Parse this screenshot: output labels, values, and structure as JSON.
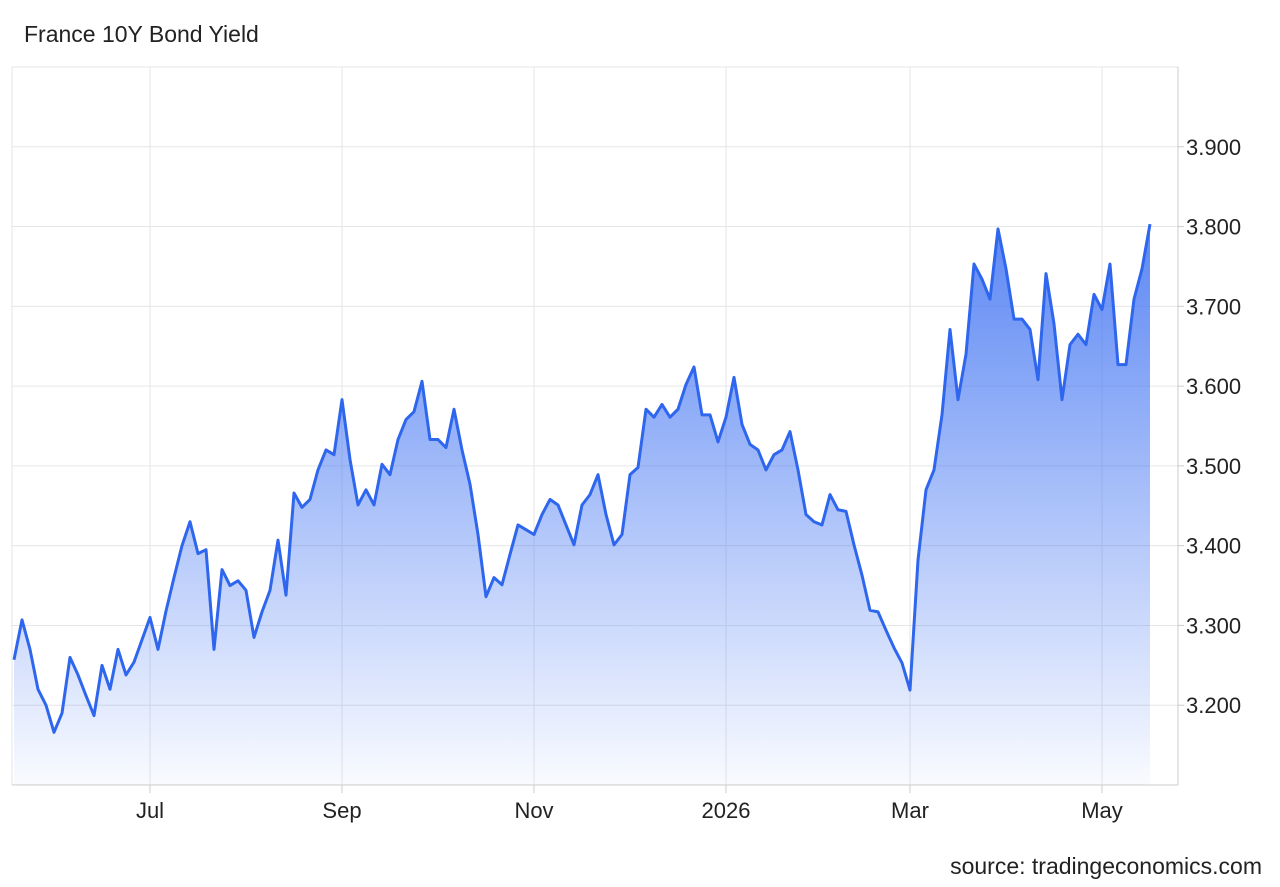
{
  "chart_data": {
    "type": "area",
    "title": "France 10Y Bond Yield",
    "source": "source: tradingeconomics.com",
    "color": "#2f66ee",
    "grid": true,
    "ylim": [
      3.1,
      4.0
    ],
    "yticks": [
      {
        "value": 3.2,
        "label": "3.200"
      },
      {
        "value": 3.3,
        "label": "3.300"
      },
      {
        "value": 3.4,
        "label": "3.400"
      },
      {
        "value": 3.5,
        "label": "3.500"
      },
      {
        "value": 3.6,
        "label": "3.600"
      },
      {
        "value": 3.7,
        "label": "3.700"
      },
      {
        "value": 3.8,
        "label": "3.800"
      },
      {
        "value": 3.9,
        "label": "3.900"
      }
    ],
    "categories": [
      null,
      null,
      null,
      null,
      null,
      null,
      null,
      null,
      null,
      null,
      null,
      null,
      null,
      null,
      null,
      null,
      null,
      "Jul",
      null,
      null,
      null,
      null,
      null,
      null,
      null,
      null,
      null,
      null,
      null,
      null,
      null,
      null,
      null,
      null,
      null,
      null,
      null,
      null,
      null,
      null,
      null,
      "Sep",
      null,
      null,
      null,
      null,
      null,
      null,
      null,
      null,
      null,
      null,
      null,
      null,
      null,
      null,
      null,
      null,
      null,
      null,
      null,
      null,
      null,
      null,
      null,
      "Nov",
      null,
      null,
      null,
      null,
      null,
      null,
      null,
      null,
      null,
      null,
      null,
      null,
      null,
      null,
      null,
      null,
      null,
      null,
      null,
      null,
      null,
      null,
      null,
      "2026",
      null,
      null,
      null,
      null,
      null,
      null,
      null,
      null,
      null,
      null,
      null,
      null,
      null,
      null,
      null,
      null,
      null,
      null,
      null,
      null,
      null,
      null,
      "Mar",
      null,
      null,
      null,
      null,
      null,
      null,
      null,
      null,
      null,
      null,
      null,
      null,
      null,
      null,
      null,
      null,
      null,
      null,
      null,
      null,
      null,
      null,
      null,
      "May",
      null,
      null,
      null,
      null,
      null,
      null
    ],
    "values": [
      3.257,
      3.307,
      3.27,
      3.22,
      3.2,
      3.166,
      3.19,
      3.26,
      3.238,
      3.212,
      3.187,
      3.25,
      3.22,
      3.27,
      3.238,
      3.254,
      3.282,
      3.31,
      3.27,
      3.318,
      3.36,
      3.4,
      3.43,
      3.39,
      3.395,
      3.27,
      3.37,
      3.35,
      3.356,
      3.344,
      3.285,
      3.317,
      3.344,
      3.407,
      3.338,
      3.466,
      3.448,
      3.458,
      3.495,
      3.52,
      3.514,
      3.583,
      3.508,
      3.451,
      3.47,
      3.451,
      3.502,
      3.489,
      3.533,
      3.558,
      3.568,
      3.606,
      3.533,
      3.533,
      3.523,
      3.571,
      3.52,
      3.477,
      3.414,
      3.336,
      3.36,
      3.351,
      3.389,
      3.426,
      3.42,
      3.414,
      3.439,
      3.458,
      3.451,
      3.426,
      3.401,
      3.451,
      3.464,
      3.489,
      3.439,
      3.401,
      3.414,
      3.489,
      3.498,
      3.571,
      3.561,
      3.577,
      3.561,
      3.571,
      3.602,
      3.624,
      3.564,
      3.564,
      3.53,
      3.561,
      3.611,
      3.552,
      3.527,
      3.52,
      3.495,
      3.514,
      3.52,
      3.543,
      3.495,
      3.439,
      3.43,
      3.426,
      3.464,
      3.445,
      3.443,
      3.401,
      3.363,
      3.319,
      3.317,
      3.294,
      3.272,
      3.253,
      3.219,
      3.382,
      3.47,
      3.495,
      3.564,
      3.671,
      3.583,
      3.64,
      3.753,
      3.734,
      3.709,
      3.797,
      3.747,
      3.684,
      3.684,
      3.671,
      3.608,
      3.741,
      3.678,
      3.583,
      3.652,
      3.665,
      3.652,
      3.715,
      3.696,
      3.753,
      3.627,
      3.627,
      3.709,
      3.747,
      3.803
    ]
  }
}
